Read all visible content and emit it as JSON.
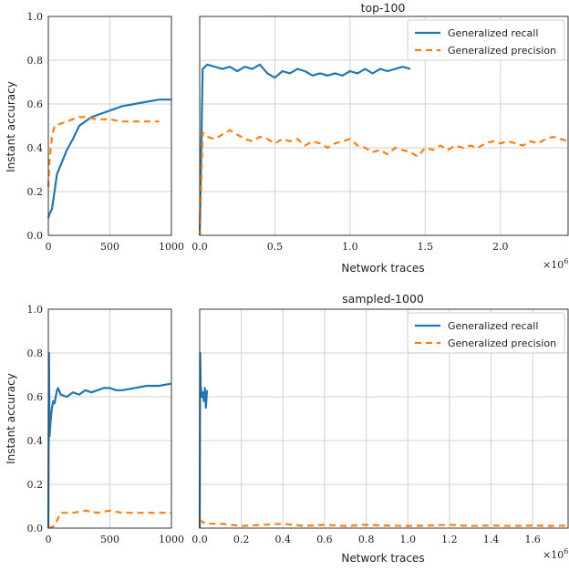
{
  "figure": {
    "ylabel": "Instant accuracy",
    "colors": {
      "recall": "#1f77b4",
      "precision": "#ff7f0e",
      "grid": "#d0d0d0",
      "frame": "#333333"
    }
  },
  "chart_data": [
    {
      "type": "line",
      "title": "",
      "xlabel": "",
      "ylabel": "Instant accuracy",
      "xlim": [
        0,
        1000
      ],
      "ylim": [
        0,
        1
      ],
      "x_ticks": [
        "0",
        "500",
        "1000"
      ],
      "y_ticks": [
        "0.0",
        "0.2",
        "0.4",
        "0.6",
        "0.8",
        "1.0"
      ],
      "grid": true,
      "series": [
        {
          "name": "Generalized recall",
          "style": "solid",
          "x": [
            0,
            10,
            30,
            50,
            70,
            100,
            150,
            200,
            250,
            300,
            350,
            400,
            450,
            500,
            600,
            700,
            800,
            900,
            1000
          ],
          "y": [
            0.08,
            0.1,
            0.12,
            0.2,
            0.28,
            0.32,
            0.39,
            0.44,
            0.5,
            0.52,
            0.54,
            0.55,
            0.56,
            0.57,
            0.59,
            0.6,
            0.61,
            0.62,
            0.62
          ]
        },
        {
          "name": "Generalized precision",
          "style": "dashed",
          "x": [
            0,
            10,
            20,
            30,
            50,
            100,
            150,
            200,
            250,
            300,
            400,
            500,
            600,
            700,
            800,
            900
          ],
          "y": [
            0.22,
            0.35,
            0.4,
            0.45,
            0.5,
            0.51,
            0.52,
            0.53,
            0.54,
            0.54,
            0.53,
            0.53,
            0.52,
            0.52,
            0.52,
            0.52
          ]
        }
      ]
    },
    {
      "type": "line",
      "title": "top-100",
      "xlabel": "Network traces",
      "x_multiplier": "×10",
      "x_multiplier_exp": "6",
      "xlim": [
        0,
        2.45
      ],
      "ylim": [
        0,
        1
      ],
      "x_ticks": [
        "0.0",
        "0.5",
        "1.0",
        "1.5",
        "2.0"
      ],
      "grid": true,
      "legend": "top-right",
      "series": [
        {
          "name": "Generalized recall",
          "style": "solid",
          "x": [
            0,
            0.02,
            0.05,
            0.1,
            0.15,
            0.2,
            0.25,
            0.3,
            0.35,
            0.4,
            0.45,
            0.5,
            0.55,
            0.6,
            0.65,
            0.7,
            0.75,
            0.8,
            0.85,
            0.9,
            0.95,
            1.0,
            1.05,
            1.1,
            1.15,
            1.2,
            1.25,
            1.3,
            1.35,
            1.4
          ],
          "y": [
            0.0,
            0.76,
            0.78,
            0.77,
            0.76,
            0.77,
            0.75,
            0.77,
            0.76,
            0.78,
            0.74,
            0.72,
            0.75,
            0.74,
            0.76,
            0.75,
            0.73,
            0.74,
            0.73,
            0.74,
            0.73,
            0.75,
            0.74,
            0.76,
            0.74,
            0.76,
            0.75,
            0.76,
            0.77,
            0.76
          ]
        },
        {
          "name": "Generalized precision",
          "style": "dashed",
          "x": [
            0,
            0.02,
            0.05,
            0.1,
            0.15,
            0.2,
            0.25,
            0.3,
            0.35,
            0.4,
            0.45,
            0.5,
            0.55,
            0.6,
            0.65,
            0.7,
            0.75,
            0.8,
            0.85,
            0.9,
            0.95,
            1.0,
            1.05,
            1.1,
            1.15,
            1.2,
            1.25,
            1.3,
            1.35,
            1.4,
            1.45,
            1.5,
            1.55,
            1.6,
            1.65,
            1.7,
            1.75,
            1.8,
            1.85,
            1.9,
            1.95,
            2.0,
            2.05,
            2.1,
            2.15,
            2.2,
            2.25,
            2.3,
            2.35,
            2.4,
            2.45
          ],
          "y": [
            0.0,
            0.47,
            0.45,
            0.44,
            0.46,
            0.48,
            0.46,
            0.44,
            0.43,
            0.45,
            0.44,
            0.42,
            0.44,
            0.43,
            0.44,
            0.41,
            0.43,
            0.42,
            0.4,
            0.42,
            0.43,
            0.44,
            0.41,
            0.4,
            0.38,
            0.39,
            0.37,
            0.4,
            0.39,
            0.38,
            0.36,
            0.4,
            0.39,
            0.41,
            0.39,
            0.41,
            0.4,
            0.41,
            0.4,
            0.42,
            0.43,
            0.42,
            0.43,
            0.42,
            0.41,
            0.43,
            0.42,
            0.44,
            0.45,
            0.44,
            0.43
          ]
        }
      ]
    },
    {
      "type": "line",
      "title": "",
      "xlabel": "",
      "ylabel": "Instant accuracy",
      "xlim": [
        0,
        1000
      ],
      "ylim": [
        0,
        1
      ],
      "x_ticks": [
        "0",
        "500",
        "1000"
      ],
      "y_ticks": [
        "0.0",
        "0.2",
        "0.4",
        "0.6",
        "0.8",
        "1.0"
      ],
      "grid": true,
      "series": [
        {
          "name": "Generalized recall",
          "style": "solid",
          "x": [
            0,
            5,
            10,
            20,
            30,
            40,
            50,
            60,
            70,
            80,
            100,
            150,
            200,
            250,
            300,
            350,
            400,
            450,
            500,
            550,
            600,
            700,
            800,
            900,
            1000
          ],
          "y": [
            0.0,
            0.8,
            0.42,
            0.5,
            0.55,
            0.58,
            0.57,
            0.6,
            0.63,
            0.64,
            0.61,
            0.6,
            0.62,
            0.61,
            0.63,
            0.62,
            0.63,
            0.64,
            0.64,
            0.63,
            0.63,
            0.64,
            0.65,
            0.65,
            0.66
          ]
        },
        {
          "name": "Generalized precision",
          "style": "dashed",
          "x": [
            0,
            50,
            100,
            200,
            300,
            400,
            500,
            600,
            700,
            800,
            900,
            1000
          ],
          "y": [
            0.0,
            0.01,
            0.07,
            0.07,
            0.08,
            0.07,
            0.08,
            0.07,
            0.07,
            0.07,
            0.07,
            0.07
          ]
        }
      ]
    },
    {
      "type": "line",
      "title": "sampled-1000",
      "xlabel": "Network traces",
      "x_multiplier": "×10",
      "x_multiplier_exp": "6",
      "xlim": [
        0,
        1.77
      ],
      "ylim": [
        0,
        1
      ],
      "x_ticks": [
        "0.0",
        "0.2",
        "0.4",
        "0.6",
        "0.8",
        "1.0",
        "1.2",
        "1.4",
        "1.6"
      ],
      "grid": true,
      "legend": "top-right",
      "series": [
        {
          "name": "Generalized recall",
          "style": "solid",
          "x": [
            0,
            0.002,
            0.005,
            0.01,
            0.015,
            0.02,
            0.025,
            0.03,
            0.035
          ],
          "y": [
            0.0,
            0.8,
            0.65,
            0.6,
            0.62,
            0.58,
            0.64,
            0.55,
            0.63
          ]
        },
        {
          "name": "Generalized precision",
          "style": "dashed",
          "x": [
            0,
            0.01,
            0.03,
            0.1,
            0.2,
            0.3,
            0.4,
            0.5,
            0.6,
            0.7,
            0.8,
            0.9,
            1.0,
            1.1,
            1.2,
            1.3,
            1.4,
            1.5,
            1.6,
            1.7,
            1.77
          ],
          "y": [
            0.04,
            0.03,
            0.02,
            0.02,
            0.01,
            0.015,
            0.02,
            0.01,
            0.015,
            0.01,
            0.015,
            0.012,
            0.01,
            0.012,
            0.015,
            0.01,
            0.012,
            0.01,
            0.012,
            0.01,
            0.012
          ]
        }
      ]
    }
  ]
}
